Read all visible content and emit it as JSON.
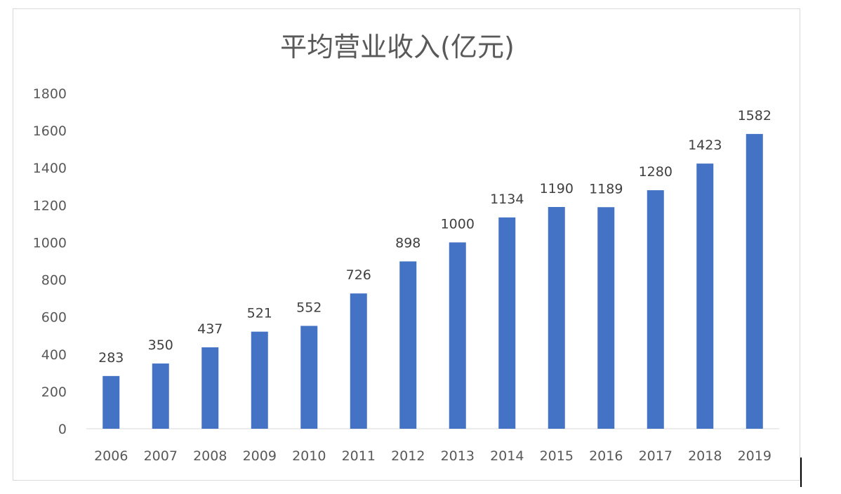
{
  "chart_data": {
    "type": "bar",
    "title": "平均营业收入(亿元)",
    "xlabel": "",
    "ylabel": "",
    "categories": [
      "2006",
      "2007",
      "2008",
      "2009",
      "2010",
      "2011",
      "2012",
      "2013",
      "2014",
      "2015",
      "2016",
      "2017",
      "2018",
      "2019"
    ],
    "values": [
      283,
      350,
      437,
      521,
      552,
      726,
      898,
      1000,
      1134,
      1190,
      1189,
      1280,
      1423,
      1582
    ],
    "ylim": [
      0,
      1800
    ],
    "yticks": [
      0,
      200,
      400,
      600,
      800,
      1000,
      1200,
      1400,
      1600,
      1800
    ],
    "grid": false,
    "legend": "none",
    "bar_color": "#4472c4",
    "text_color": "#595959",
    "label_color": "#404040"
  }
}
